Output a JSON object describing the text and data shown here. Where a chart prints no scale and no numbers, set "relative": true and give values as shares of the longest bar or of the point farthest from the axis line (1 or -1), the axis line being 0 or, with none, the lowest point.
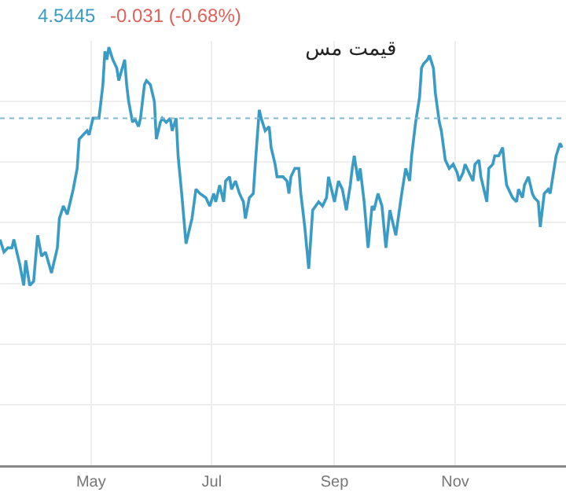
{
  "chart_data": {
    "type": "line",
    "title": "قیمت مس",
    "relative": true,
    "annotations": [
      "4.5445",
      "-0.031 (-0.68%)"
    ],
    "xlim": [
      "--03-16",
      "--12-27"
    ],
    "xticks": [
      {
        "value": "--05-01",
        "label": "May"
      },
      {
        "value": "--07-01",
        "label": "Jul"
      },
      {
        "value": "--09-01",
        "label": "Sep"
      },
      {
        "value": "--11-01",
        "label": "Nov"
      }
    ],
    "grid": true,
    "marker": "none",
    "line_style": "solid",
    "ref_lines": [
      {
        "axis": "y",
        "value": 0.83,
        "color": "#7fb8cf",
        "line_style": "dotted"
      }
    ],
    "x": [
      "--03-16",
      "--03-18",
      "--03-20",
      "--03-22",
      "--03-23",
      "--03-26",
      "--03-28",
      "--03-29",
      "--03-31",
      "--04-02",
      "--04-04",
      "--04-06",
      "--04-08",
      "--04-11",
      "--04-14",
      "--04-15",
      "--04-17",
      "--04-19",
      "--04-21",
      "--04-22",
      "--04-24",
      "--04-25",
      "--04-29",
      "--04-30",
      "--05-02",
      "--05-03",
      "--05-05",
      "--05-07",
      "--05-08",
      "--05-09",
      "--05-10",
      "--05-12",
      "--05-14",
      "--05-15",
      "--05-18",
      "--05-19",
      "--05-20",
      "--05-22",
      "--05-23",
      "--05-25",
      "--05-26",
      "--05-28",
      "--05-29",
      "--05-31",
      "--06-02",
      "--06-03",
      "--06-05",
      "--06-06",
      "--06-08",
      "--06-10",
      "--06-11",
      "--06-13",
      "--06-14",
      "--06-16",
      "--06-18",
      "--06-21",
      "--06-23",
      "--06-25",
      "--06-28",
      "--06-30",
      "--07-02",
      "--07-03",
      "--07-05",
      "--07-07",
      "--07-08",
      "--07-10",
      "--07-11",
      "--07-13",
      "--07-15",
      "--07-17",
      "--07-18",
      "--07-20",
      "--07-22",
      "--07-23",
      "--07-25",
      "--07-26",
      "--07-28",
      "--07-30",
      "--07-31",
      "--08-02",
      "--08-03",
      "--08-06",
      "--08-08",
      "--08-09",
      "--08-10",
      "--08-12",
      "--08-14",
      "--08-15",
      "--08-17",
      "--08-19",
      "--08-21",
      "--08-24",
      "--08-26",
      "--08-28",
      "--08-29",
      "--09-01",
      "--09-03",
      "--09-05",
      "--09-07",
      "--09-09",
      "--09-10",
      "--09-11",
      "--09-13",
      "--09-14",
      "--09-16",
      "--09-18",
      "--09-20",
      "--09-21",
      "--09-23",
      "--09-25",
      "--09-27",
      "--09-29",
      "--09-30",
      "--10-02",
      "--10-05",
      "--10-07",
      "--10-09",
      "--10-10",
      "--10-12",
      "--10-14",
      "--10-15",
      "--10-16",
      "--10-18",
      "--10-19",
      "--10-21",
      "--10-22",
      "--10-24",
      "--10-25",
      "--10-27",
      "--10-29",
      "--10-31",
      "--11-02",
      "--11-03",
      "--11-05",
      "--11-06",
      "--11-08",
      "--11-10",
      "--11-11",
      "--11-13",
      "--11-14",
      "--11-17",
      "--11-18",
      "--11-20",
      "--11-21",
      "--11-23",
      "--11-25",
      "--11-26",
      "--11-27",
      "--11-29",
      "--11-30",
      "--12-02",
      "--12-03",
      "--12-05",
      "--12-06",
      "--12-08",
      "--12-10",
      "--12-11",
      "--12-13",
      "--12-14",
      "--12-16",
      "--12-18",
      "--12-19",
      "--12-21",
      "--12-22",
      "--12-24",
      "--12-25"
    ],
    "series": [
      {
        "color": "#3a9cc4",
        "values": [
          0.54,
          0.51,
          0.52,
          0.52,
          0.54,
          0.48,
          0.43,
          0.49,
          0.43,
          0.44,
          0.55,
          0.5,
          0.51,
          0.46,
          0.52,
          0.59,
          0.62,
          0.6,
          0.64,
          0.66,
          0.71,
          0.78,
          0.8,
          0.79,
          0.83,
          0.83,
          0.83,
          0.91,
          0.99,
          0.97,
          1,
          0.97,
          0.95,
          0.92,
          0.97,
          0.91,
          0.87,
          0.82,
          0.83,
          0.81,
          0.83,
          0.91,
          0.92,
          0.91,
          0.87,
          0.78,
          0.82,
          0.83,
          0.82,
          0.83,
          0.8,
          0.83,
          0.74,
          0.64,
          0.53,
          0.59,
          0.66,
          0.65,
          0.64,
          0.62,
          0.65,
          0.63,
          0.67,
          0.63,
          0.68,
          0.69,
          0.66,
          0.68,
          0.65,
          0.63,
          0.59,
          0.64,
          0.65,
          0.72,
          0.85,
          0.83,
          0.8,
          0.81,
          0.76,
          0.72,
          0.69,
          0.69,
          0.68,
          0.65,
          0.69,
          0.71,
          0.71,
          0.65,
          0.57,
          0.47,
          0.61,
          0.63,
          0.62,
          0.64,
          0.69,
          0.63,
          0.68,
          0.66,
          0.61,
          0.67,
          0.71,
          0.74,
          0.68,
          0.71,
          0.63,
          0.52,
          0.62,
          0.61,
          0.65,
          0.62,
          0.52,
          0.61,
          0.59,
          0.55,
          0.65,
          0.71,
          0.68,
          0.74,
          0.82,
          0.88,
          0.95,
          0.96,
          0.97,
          0.98,
          0.95,
          0.89,
          0.82,
          0.8,
          0.73,
          0.71,
          0.72,
          0.7,
          0.68,
          0.7,
          0.72,
          0.7,
          0.68,
          0.72,
          0.73,
          0.69,
          0.63,
          0.71,
          0.72,
          0.74,
          0.74,
          0.76,
          0.71,
          0.67,
          0.65,
          0.64,
          0.63,
          0.66,
          0.64,
          0.67,
          0.69,
          0.65,
          0.64,
          0.63,
          0.57,
          0.65,
          0.66,
          0.65,
          0.71,
          0.74,
          0.77,
          0.76
        ]
      }
    ]
  }
}
